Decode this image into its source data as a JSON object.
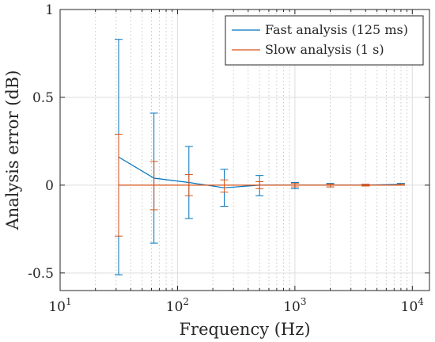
{
  "chart_data": {
    "type": "line",
    "xscale": "log",
    "xlim": [
      10,
      14000
    ],
    "ylim": [
      -0.6,
      1
    ],
    "xlabel": "Frequency (Hz)",
    "ylabel": "Analysis error (dB)",
    "xticks": [
      {
        "value": 10,
        "base": "10",
        "exp": "1"
      },
      {
        "value": 100,
        "base": "10",
        "exp": "2"
      },
      {
        "value": 1000,
        "base": "10",
        "exp": "3"
      },
      {
        "value": 10000,
        "base": "10",
        "exp": "4"
      }
    ],
    "yticks": [
      {
        "value": -0.5,
        "label": "-0.5"
      },
      {
        "value": 0,
        "label": "0"
      },
      {
        "value": 0.5,
        "label": "0.5"
      },
      {
        "value": 1,
        "label": "1"
      }
    ],
    "grid": true,
    "minor_grid": true,
    "legend_position": "top-right",
    "series": [
      {
        "name": "Fast analysis (125 ms)",
        "color": "#0072BD",
        "x": [
          31.5,
          63,
          125,
          250,
          500,
          1000,
          2000,
          4000,
          8000
        ],
        "y": [
          0.16,
          0.04,
          0.015,
          -0.015,
          0.0,
          0.0,
          0.0,
          0.0,
          0.005
        ],
        "lower": [
          -0.51,
          -0.33,
          -0.19,
          -0.12,
          -0.06,
          -0.02,
          -0.01,
          -0.005,
          0.0
        ],
        "upper": [
          0.83,
          0.41,
          0.22,
          0.09,
          0.055,
          0.015,
          0.01,
          0.005,
          0.01
        ]
      },
      {
        "name": "Slow analysis (1 s)",
        "color": "#D95319",
        "x": [
          31.5,
          63,
          125,
          250,
          500,
          1000,
          2000,
          4000,
          8000
        ],
        "y": [
          0.0,
          0.0,
          0.0,
          0.0,
          0.0,
          0.0,
          0.0,
          0.0,
          0.0
        ],
        "lower": [
          -0.29,
          -0.14,
          -0.06,
          -0.04,
          -0.02,
          -0.01,
          -0.01,
          -0.005,
          0.0
        ],
        "upper": [
          0.29,
          0.135,
          0.06,
          0.03,
          0.02,
          0.01,
          0.005,
          0.005,
          0.005
        ]
      }
    ]
  }
}
